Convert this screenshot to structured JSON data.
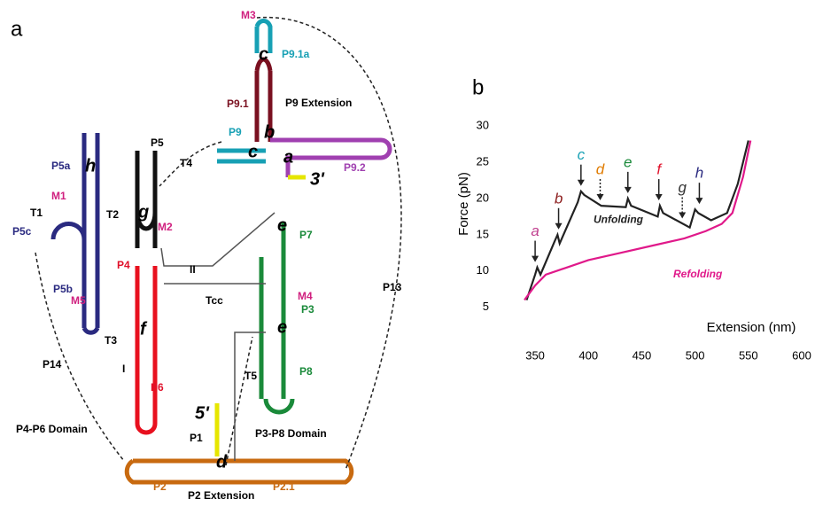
{
  "diagram": {
    "labels": [
      "a",
      "M3",
      "c",
      "P9.1a",
      "P9.1",
      "P9 Extension",
      "P9",
      "b",
      "P5",
      "c",
      "a",
      "P9.2",
      "3'",
      "P5a",
      "h",
      "T4",
      "M1",
      "T1",
      "T2",
      "g",
      "M2",
      "e",
      "P7",
      "P5c",
      "P4",
      "II",
      "P5b",
      "Tcc",
      "M4",
      "P3",
      "P13",
      "M5",
      "f",
      "e",
      "T3",
      "P14",
      "I",
      "T5",
      "P6",
      "P8",
      "5'",
      "P4-P6 Domain",
      "P3-P8 Domain",
      "P1",
      "d",
      "P2",
      "P2 Extension",
      "P2.1"
    ]
  },
  "chart_data": {
    "type": "line",
    "panel_label": "b",
    "xlabel": "Extension (nm)",
    "ylabel": "Force (pN)",
    "xlim": [
      330,
      600
    ],
    "ylim": [
      3,
      31
    ],
    "xticks": [
      350,
      400,
      450,
      500,
      550,
      600
    ],
    "yticks": [
      5,
      10,
      15,
      20,
      25,
      30
    ],
    "series": [
      {
        "name": "Unfolding",
        "color": "#222222",
        "x": [
          342,
          350,
          352,
          355,
          368,
          371,
          373,
          390,
          393,
          396,
          412,
          435,
          437,
          440,
          465,
          467,
          470,
          495,
          500,
          503,
          515,
          530,
          540,
          550
        ],
        "values": [
          6,
          9.5,
          10.5,
          9.5,
          14,
          15,
          13.8,
          19.5,
          21,
          20.5,
          19,
          18.8,
          20,
          19,
          17.5,
          19,
          18,
          16,
          18.5,
          18,
          17,
          18,
          22,
          28
        ]
      },
      {
        "name": "Refolding",
        "color": "#e0198a",
        "x": [
          340,
          350,
          360,
          380,
          400,
          430,
          460,
          490,
          510,
          525,
          535,
          545,
          552
        ],
        "values": [
          6,
          8,
          9.5,
          10.5,
          11.5,
          12.5,
          13.5,
          14.5,
          15.5,
          16.5,
          18,
          23,
          28
        ]
      }
    ],
    "annotations": [
      {
        "text": "a",
        "color": "#c0408f",
        "x": 350,
        "y": 11,
        "style": "solid"
      },
      {
        "text": "b",
        "color": "#8b1a1a",
        "x": 372,
        "y": 15.5,
        "style": "solid"
      },
      {
        "text": "c",
        "color": "#17a0b4",
        "x": 393,
        "y": 21.5,
        "style": "solid"
      },
      {
        "text": "d",
        "color": "#e07b00",
        "x": 411,
        "y": 19.5,
        "style": "dotted"
      },
      {
        "text": "e",
        "color": "#1a8a3a",
        "x": 437,
        "y": 20.5,
        "style": "solid"
      },
      {
        "text": "f",
        "color": "#e0102a",
        "x": 466,
        "y": 19.5,
        "style": "solid"
      },
      {
        "text": "g",
        "color": "#333333",
        "x": 488,
        "y": 17,
        "style": "dotted"
      },
      {
        "text": "h",
        "color": "#2a2a80",
        "x": 504,
        "y": 19,
        "style": "solid"
      }
    ]
  }
}
